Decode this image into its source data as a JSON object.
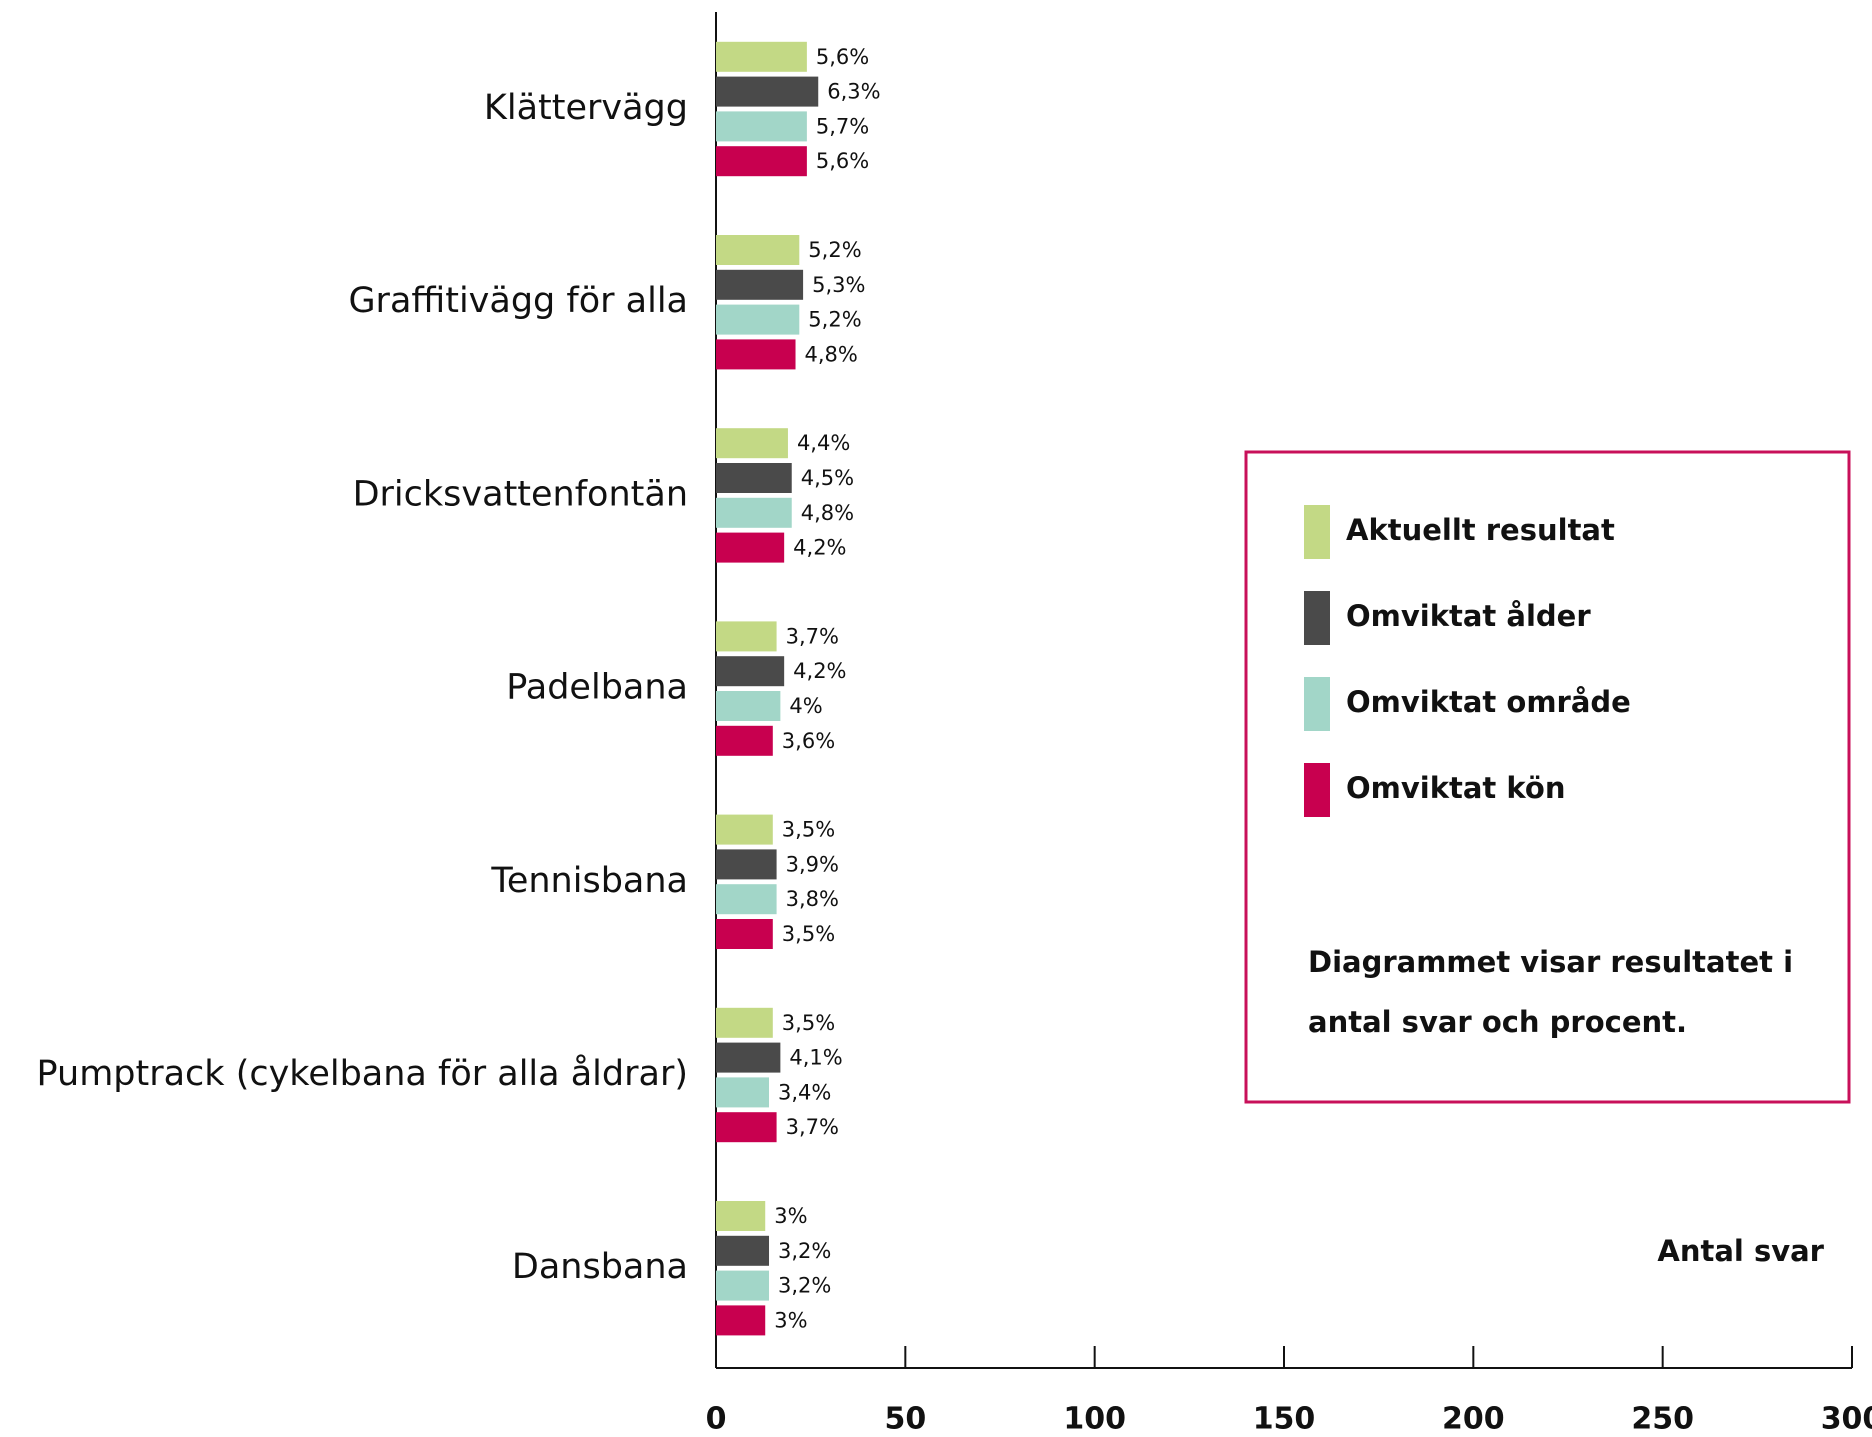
{
  "chart_data": {
    "type": "barh",
    "categories": [
      "Klättervägg",
      "Graffitivägg för alla",
      "Dricksvattenfontän",
      "Padelbana",
      "Tennisbana",
      "Pumptrack (cykelbana för alla åldrar)",
      "Dansbana"
    ],
    "series": [
      {
        "name": "Aktuellt resultat",
        "color": "#c3d985",
        "values": [
          24,
          22,
          19,
          16,
          15,
          15,
          13
        ],
        "percent_labels": [
          "5,6%",
          "5,2%",
          "4,4%",
          "3,7%",
          "3,5%",
          "3,5%",
          "3%"
        ]
      },
      {
        "name": "Omviktat ålder",
        "color": "#4a4a4a",
        "values": [
          27,
          23,
          20,
          18,
          16,
          17,
          14
        ],
        "percent_labels": [
          "6,3%",
          "5,3%",
          "4,5%",
          "4,2%",
          "3,9%",
          "4,1%",
          "3,2%"
        ]
      },
      {
        "name": "Omviktat område",
        "color": "#a2d6c8",
        "values": [
          24,
          22,
          20,
          17,
          16,
          14,
          14
        ],
        "percent_labels": [
          "5,7%",
          "5,2%",
          "4,8%",
          "4%",
          "3,8%",
          "3,4%",
          "3,2%"
        ]
      },
      {
        "name": "Omviktat kön",
        "color": "#c8004f",
        "values": [
          24,
          21,
          18,
          15,
          15,
          16,
          13
        ],
        "percent_labels": [
          "5,6%",
          "4,8%",
          "4,2%",
          "3,6%",
          "3,5%",
          "3,7%",
          "3%"
        ]
      }
    ],
    "xlabel": "Antal svar",
    "xlim": [
      0,
      300
    ],
    "xticks": [
      0,
      50,
      100,
      150,
      200,
      250,
      300
    ],
    "note": [
      "Diagrammet visar resultatet i",
      "antal svar och procent."
    ],
    "legend_border_color": "#c8105a"
  }
}
